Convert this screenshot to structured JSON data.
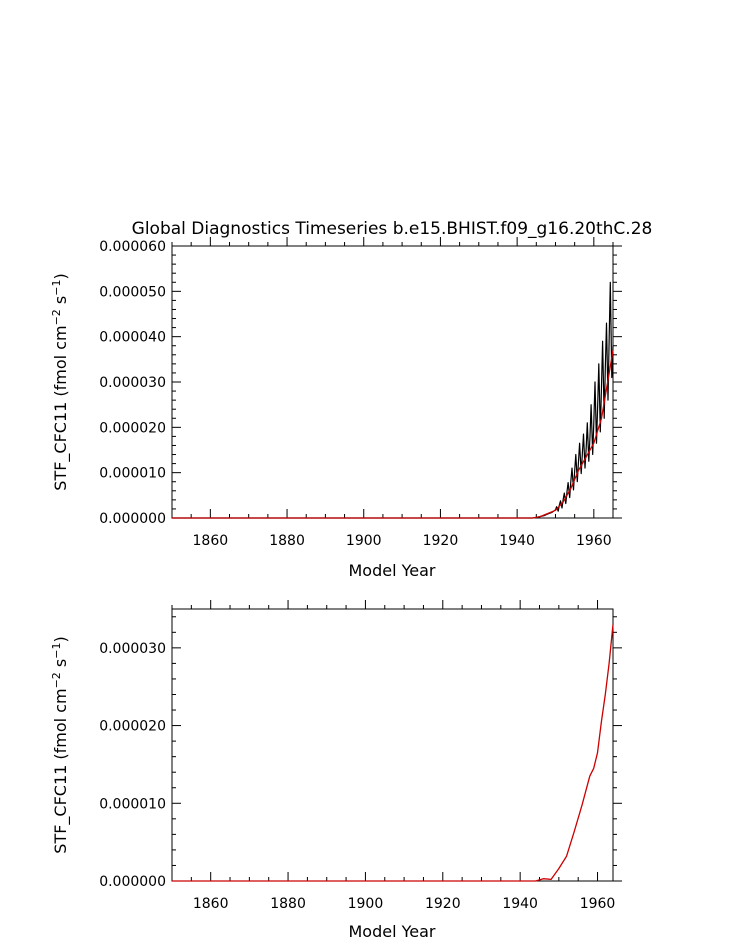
{
  "title": "Global Diagnostics Timeseries b.e15.BHIST.f09_g16.20thC.28",
  "colors": {
    "monthly": "#000000",
    "annual": "#cc0000"
  },
  "chart_data": [
    {
      "type": "line",
      "xlabel": "Model Year",
      "ylabel_main": "STF_CFC11 (fmol cm",
      "ylabel_sup1": "−2",
      "ylabel_mid": " s",
      "ylabel_sup2": "−1",
      "ylabel_end": ")",
      "xlim": [
        1850,
        1965
      ],
      "ylim": [
        0,
        6e-05
      ],
      "xticks": [
        1860,
        1880,
        1900,
        1920,
        1940,
        1960
      ],
      "xtick_labels": [
        "1860",
        "1880",
        "1900",
        "1920",
        "1940",
        "1960"
      ],
      "yticks": [
        0,
        1e-05,
        2e-05,
        3e-05,
        4e-05,
        5e-05,
        6e-05
      ],
      "ytick_labels": [
        "0.000000",
        "0.000010",
        "0.000020",
        "0.000030",
        "0.000040",
        "0.000050",
        "0.000060"
      ],
      "series": [
        {
          "role": "monthly",
          "x": [
            1850,
            1940,
            1944,
            1945,
            1946,
            1947,
            1948,
            1949,
            1950,
            1950.3,
            1950.7,
            1951,
            1951.3,
            1951.7,
            1952,
            1952.3,
            1952.7,
            1953,
            1953.3,
            1953.7,
            1954,
            1954.3,
            1954.7,
            1955,
            1955.3,
            1955.7,
            1956,
            1956.3,
            1956.7,
            1957,
            1957.3,
            1957.7,
            1958,
            1958.3,
            1958.7,
            1959,
            1959.3,
            1959.7,
            1960,
            1960.3,
            1960.7,
            1961,
            1961.3,
            1961.7,
            1962,
            1962.3,
            1962.7,
            1963,
            1963.3,
            1963.7,
            1964,
            1964.3,
            1964.7,
            1965
          ],
          "y": [
            0,
            0,
            0,
            1e-07,
            3e-07,
            5e-07,
            9e-07,
            1.2e-06,
            1.8e-06,
            2.5e-06,
            1.5e-06,
            2.8e-06,
            3.8e-06,
            2.2e-06,
            4e-06,
            5.5e-06,
            3.2e-06,
            5.8e-06,
            7.8e-06,
            4.5e-06,
            8e-06,
            1.1e-05,
            6.2e-06,
            1.05e-05,
            1.4e-05,
            8e-06,
            1.25e-05,
            1.65e-05,
            9.8e-06,
            1.4e-05,
            1.85e-05,
            1.1e-05,
            1.55e-05,
            2.1e-05,
            1.25e-05,
            1.8e-05,
            2.5e-05,
            1.4e-05,
            2.1e-05,
            3e-05,
            1.65e-05,
            2.5e-05,
            3.4e-05,
            1.9e-05,
            2.9e-05,
            3.9e-05,
            2.2e-05,
            3.3e-05,
            4.3e-05,
            2.6e-05,
            4e-05,
            5.2e-05,
            3.1e-05,
            3.8e-05
          ]
        },
        {
          "role": "annual",
          "x": [
            1850,
            1940,
            1944,
            1946,
            1948,
            1950,
            1952,
            1954,
            1956,
            1958,
            1960,
            1962,
            1964,
            1965
          ],
          "y": [
            0,
            0,
            0,
            3e-07,
            1e-06,
            1.7e-06,
            3.5e-06,
            6.5e-06,
            1.05e-05,
            1.35e-05,
            1.65e-05,
            2.2e-05,
            3.2e-05,
            3.7e-05
          ]
        }
      ]
    },
    {
      "type": "line",
      "xlabel": "Model Year",
      "ylabel_main": "STF_CFC11 (fmol cm",
      "ylabel_sup1": "−2",
      "ylabel_mid": " s",
      "ylabel_sup2": "−1",
      "ylabel_end": ")",
      "xlim": [
        1850,
        1964
      ],
      "ylim": [
        0,
        3.5e-05
      ],
      "xticks": [
        1860,
        1880,
        1900,
        1920,
        1940,
        1960
      ],
      "xtick_labels": [
        "1860",
        "1880",
        "1900",
        "1920",
        "1940",
        "1960"
      ],
      "yticks": [
        0,
        1e-05,
        2e-05,
        3e-05
      ],
      "ytick_labels": [
        "0.000000",
        "0.000010",
        "0.000020",
        "0.000030"
      ],
      "series": [
        {
          "role": "annual",
          "x": [
            1850,
            1944,
            1946,
            1948,
            1950,
            1952,
            1954,
            1956,
            1958,
            1959,
            1960,
            1961,
            1962,
            1963,
            1964
          ],
          "y": [
            0,
            0,
            3e-07,
            2e-07,
            1.6e-06,
            3.2e-06,
            6.4e-06,
            9.8e-06,
            1.35e-05,
            1.45e-05,
            1.65e-05,
            2.05e-05,
            2.4e-05,
            2.8e-05,
            3.3e-05
          ]
        }
      ]
    }
  ]
}
